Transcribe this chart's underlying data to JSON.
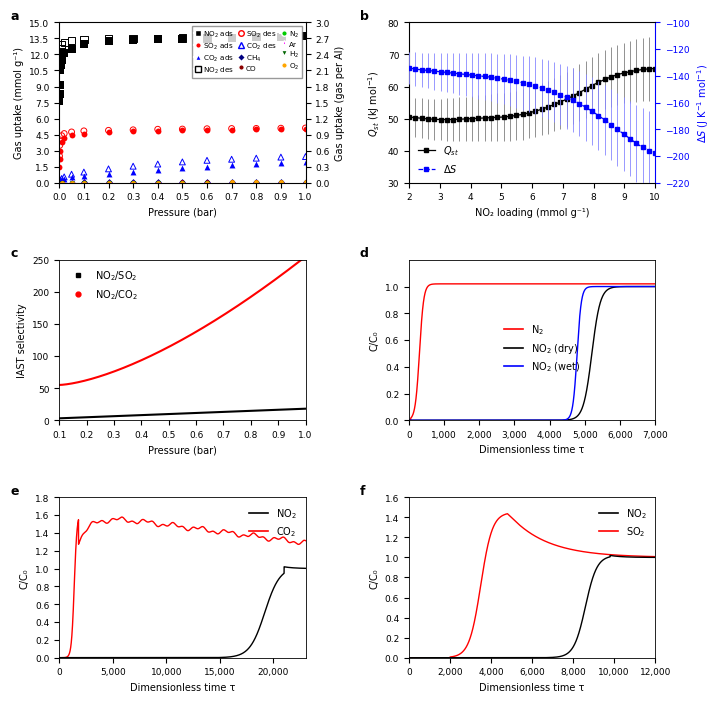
{
  "panel_a": {
    "xlabel": "Pressure (bar)",
    "ylabel_left": "Gas uptake (mmol g⁻¹)",
    "ylabel_right": "Gas uptake (gas per Al)",
    "ylim_left": [
      0,
      15.0
    ],
    "ylim_right": [
      0,
      3.0
    ],
    "xlim": [
      0,
      1.0
    ],
    "yticks_left": [
      0,
      1.5,
      3.0,
      4.5,
      6.0,
      7.5,
      9.0,
      10.5,
      12.0,
      13.5,
      15.0
    ],
    "yticks_right": [
      0.0,
      0.3,
      0.6,
      0.9,
      1.2,
      1.5,
      1.8,
      2.1,
      2.4,
      2.7,
      3.0
    ],
    "xticks": [
      0.0,
      0.1,
      0.2,
      0.3,
      0.4,
      0.5,
      0.6,
      0.7,
      0.8,
      0.9,
      1.0
    ]
  },
  "panel_b": {
    "xlabel": "NO₂ loading (mmol g⁻¹)",
    "ylim_left": [
      30,
      80
    ],
    "ylim_right": [
      -220,
      -100
    ],
    "xlim": [
      2,
      10
    ],
    "yticks_left": [
      30,
      40,
      50,
      60,
      70,
      80
    ],
    "yticks_right": [
      -220,
      -200,
      -180,
      -160,
      -140,
      -120,
      -100
    ],
    "xticks": [
      2,
      3,
      4,
      5,
      6,
      7,
      8,
      9,
      10
    ]
  },
  "panel_c": {
    "xlabel": "Pressure (bar)",
    "ylabel": "IAST selectivity",
    "ylim": [
      0,
      250
    ],
    "xlim": [
      0.1,
      1.0
    ],
    "yticks": [
      0,
      50,
      100,
      150,
      200,
      250
    ],
    "xticks": [
      0.1,
      0.2,
      0.3,
      0.4,
      0.5,
      0.6,
      0.7,
      0.8,
      0.9,
      1.0
    ]
  },
  "panel_d": {
    "xlabel": "Dimensionless time τ",
    "ylabel": "C/C₀",
    "ylim": [
      0,
      1.2
    ],
    "xlim": [
      0,
      7000
    ],
    "yticks": [
      0.0,
      0.2,
      0.4,
      0.6,
      0.8,
      1.0
    ],
    "xticks": [
      0,
      1000,
      2000,
      3000,
      4000,
      5000,
      6000,
      7000
    ]
  },
  "panel_e": {
    "xlabel": "Dimensionless time τ",
    "ylabel": "C/C₀",
    "ylim": [
      0,
      1.8
    ],
    "xlim": [
      0,
      23000
    ],
    "yticks": [
      0.0,
      0.2,
      0.4,
      0.6,
      0.8,
      1.0,
      1.2,
      1.4,
      1.6,
      1.8
    ],
    "xticks": [
      0,
      5000,
      10000,
      15000,
      20000
    ]
  },
  "panel_f": {
    "xlabel": "Dimensionless time τ",
    "ylabel": "C/C₀",
    "ylim": [
      0,
      1.6
    ],
    "xlim": [
      0,
      12000
    ],
    "yticks": [
      0.0,
      0.2,
      0.4,
      0.6,
      0.8,
      1.0,
      1.2,
      1.4,
      1.6
    ],
    "xticks": [
      0,
      2000,
      4000,
      6000,
      8000,
      10000,
      12000
    ]
  }
}
